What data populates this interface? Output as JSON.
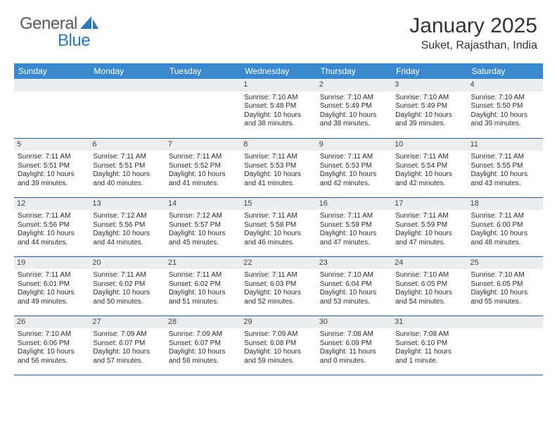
{
  "logo": {
    "text1": "General",
    "text2": "Blue"
  },
  "title": "January 2025",
  "location": "Suket, Rajasthan, India",
  "colors": {
    "header_bg": "#3a89cf",
    "row_border": "#2f5e8e",
    "daynum_bg": "#ecedee",
    "logo_gray": "#555b61",
    "logo_blue": "#2f78bf"
  },
  "dow": [
    "Sunday",
    "Monday",
    "Tuesday",
    "Wednesday",
    "Thursday",
    "Friday",
    "Saturday"
  ],
  "weeks": [
    [
      null,
      null,
      null,
      {
        "n": "1",
        "sr": "7:10 AM",
        "ss": "5:48 PM",
        "dl": "10 hours and 38 minutes."
      },
      {
        "n": "2",
        "sr": "7:10 AM",
        "ss": "5:49 PM",
        "dl": "10 hours and 38 minutes."
      },
      {
        "n": "3",
        "sr": "7:10 AM",
        "ss": "5:49 PM",
        "dl": "10 hours and 39 minutes."
      },
      {
        "n": "4",
        "sr": "7:10 AM",
        "ss": "5:50 PM",
        "dl": "10 hours and 39 minutes."
      }
    ],
    [
      {
        "n": "5",
        "sr": "7:11 AM",
        "ss": "5:51 PM",
        "dl": "10 hours and 39 minutes."
      },
      {
        "n": "6",
        "sr": "7:11 AM",
        "ss": "5:51 PM",
        "dl": "10 hours and 40 minutes."
      },
      {
        "n": "7",
        "sr": "7:11 AM",
        "ss": "5:52 PM",
        "dl": "10 hours and 41 minutes."
      },
      {
        "n": "8",
        "sr": "7:11 AM",
        "ss": "5:53 PM",
        "dl": "10 hours and 41 minutes."
      },
      {
        "n": "9",
        "sr": "7:11 AM",
        "ss": "5:53 PM",
        "dl": "10 hours and 42 minutes."
      },
      {
        "n": "10",
        "sr": "7:11 AM",
        "ss": "5:54 PM",
        "dl": "10 hours and 42 minutes."
      },
      {
        "n": "11",
        "sr": "7:11 AM",
        "ss": "5:55 PM",
        "dl": "10 hours and 43 minutes."
      }
    ],
    [
      {
        "n": "12",
        "sr": "7:11 AM",
        "ss": "5:56 PM",
        "dl": "10 hours and 44 minutes."
      },
      {
        "n": "13",
        "sr": "7:12 AM",
        "ss": "5:56 PM",
        "dl": "10 hours and 44 minutes."
      },
      {
        "n": "14",
        "sr": "7:12 AM",
        "ss": "5:57 PM",
        "dl": "10 hours and 45 minutes."
      },
      {
        "n": "15",
        "sr": "7:11 AM",
        "ss": "5:58 PM",
        "dl": "10 hours and 46 minutes."
      },
      {
        "n": "16",
        "sr": "7:11 AM",
        "ss": "5:59 PM",
        "dl": "10 hours and 47 minutes."
      },
      {
        "n": "17",
        "sr": "7:11 AM",
        "ss": "5:59 PM",
        "dl": "10 hours and 47 minutes."
      },
      {
        "n": "18",
        "sr": "7:11 AM",
        "ss": "6:00 PM",
        "dl": "10 hours and 48 minutes."
      }
    ],
    [
      {
        "n": "19",
        "sr": "7:11 AM",
        "ss": "6:01 PM",
        "dl": "10 hours and 49 minutes."
      },
      {
        "n": "20",
        "sr": "7:11 AM",
        "ss": "6:02 PM",
        "dl": "10 hours and 50 minutes."
      },
      {
        "n": "21",
        "sr": "7:11 AM",
        "ss": "6:02 PM",
        "dl": "10 hours and 51 minutes."
      },
      {
        "n": "22",
        "sr": "7:11 AM",
        "ss": "6:03 PM",
        "dl": "10 hours and 52 minutes."
      },
      {
        "n": "23",
        "sr": "7:10 AM",
        "ss": "6:04 PM",
        "dl": "10 hours and 53 minutes."
      },
      {
        "n": "24",
        "sr": "7:10 AM",
        "ss": "6:05 PM",
        "dl": "10 hours and 54 minutes."
      },
      {
        "n": "25",
        "sr": "7:10 AM",
        "ss": "6:05 PM",
        "dl": "10 hours and 55 minutes."
      }
    ],
    [
      {
        "n": "26",
        "sr": "7:10 AM",
        "ss": "6:06 PM",
        "dl": "10 hours and 56 minutes."
      },
      {
        "n": "27",
        "sr": "7:09 AM",
        "ss": "6:07 PM",
        "dl": "10 hours and 57 minutes."
      },
      {
        "n": "28",
        "sr": "7:09 AM",
        "ss": "6:07 PM",
        "dl": "10 hours and 58 minutes."
      },
      {
        "n": "29",
        "sr": "7:09 AM",
        "ss": "6:08 PM",
        "dl": "10 hours and 59 minutes."
      },
      {
        "n": "30",
        "sr": "7:08 AM",
        "ss": "6:09 PM",
        "dl": "11 hours and 0 minutes."
      },
      {
        "n": "31",
        "sr": "7:08 AM",
        "ss": "6:10 PM",
        "dl": "11 hours and 1 minute."
      },
      null
    ]
  ],
  "labels": {
    "sunrise": "Sunrise: ",
    "sunset": "Sunset: ",
    "daylight": "Daylight: "
  }
}
